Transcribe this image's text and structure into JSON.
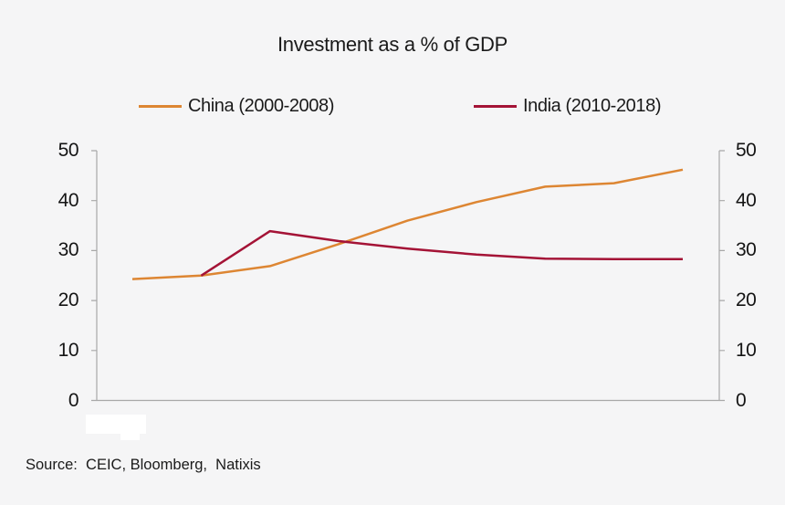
{
  "title": "Investment as a % of GDP",
  "legend": {
    "items": [
      {
        "label": "China (2000-2008)",
        "color": "#dd8633"
      },
      {
        "label": "India (2010-2018)",
        "color": "#a41336"
      }
    ]
  },
  "source": "Source:  CEIC, Bloomberg,  Natixis",
  "colors": {
    "background": "#f5f5f6",
    "axis": "#a8a8a8",
    "text": "#1a1a1a",
    "china_line": "#dd8633",
    "india_line": "#a41336"
  },
  "chart_data": {
    "type": "line",
    "title": "Investment as a % of GDP",
    "xlabel": "",
    "ylabel": "",
    "ylim": [
      0,
      50
    ],
    "y_ticks": [
      0,
      10,
      20,
      30,
      40,
      50
    ],
    "y_axis_sides": "left_and_right",
    "x_tick_labels_visible": false,
    "grid": false,
    "legend_position": "top",
    "x_index_count": 9,
    "series": [
      {
        "name": "China (2000-2008)",
        "color": "#dd8633",
        "x_index": [
          0,
          1,
          2,
          3,
          4,
          5,
          6,
          7,
          8
        ],
        "values": [
          24.3,
          25.0,
          26.9,
          31.3,
          36.0,
          39.7,
          42.8,
          43.5,
          46.2
        ]
      },
      {
        "name": "India (2010-2018)",
        "color": "#a41336",
        "x_index": [
          1,
          2,
          3,
          4,
          5,
          6,
          7,
          8
        ],
        "values": [
          25.0,
          33.9,
          31.9,
          30.4,
          29.2,
          28.4,
          28.3,
          28.3
        ]
      }
    ]
  }
}
